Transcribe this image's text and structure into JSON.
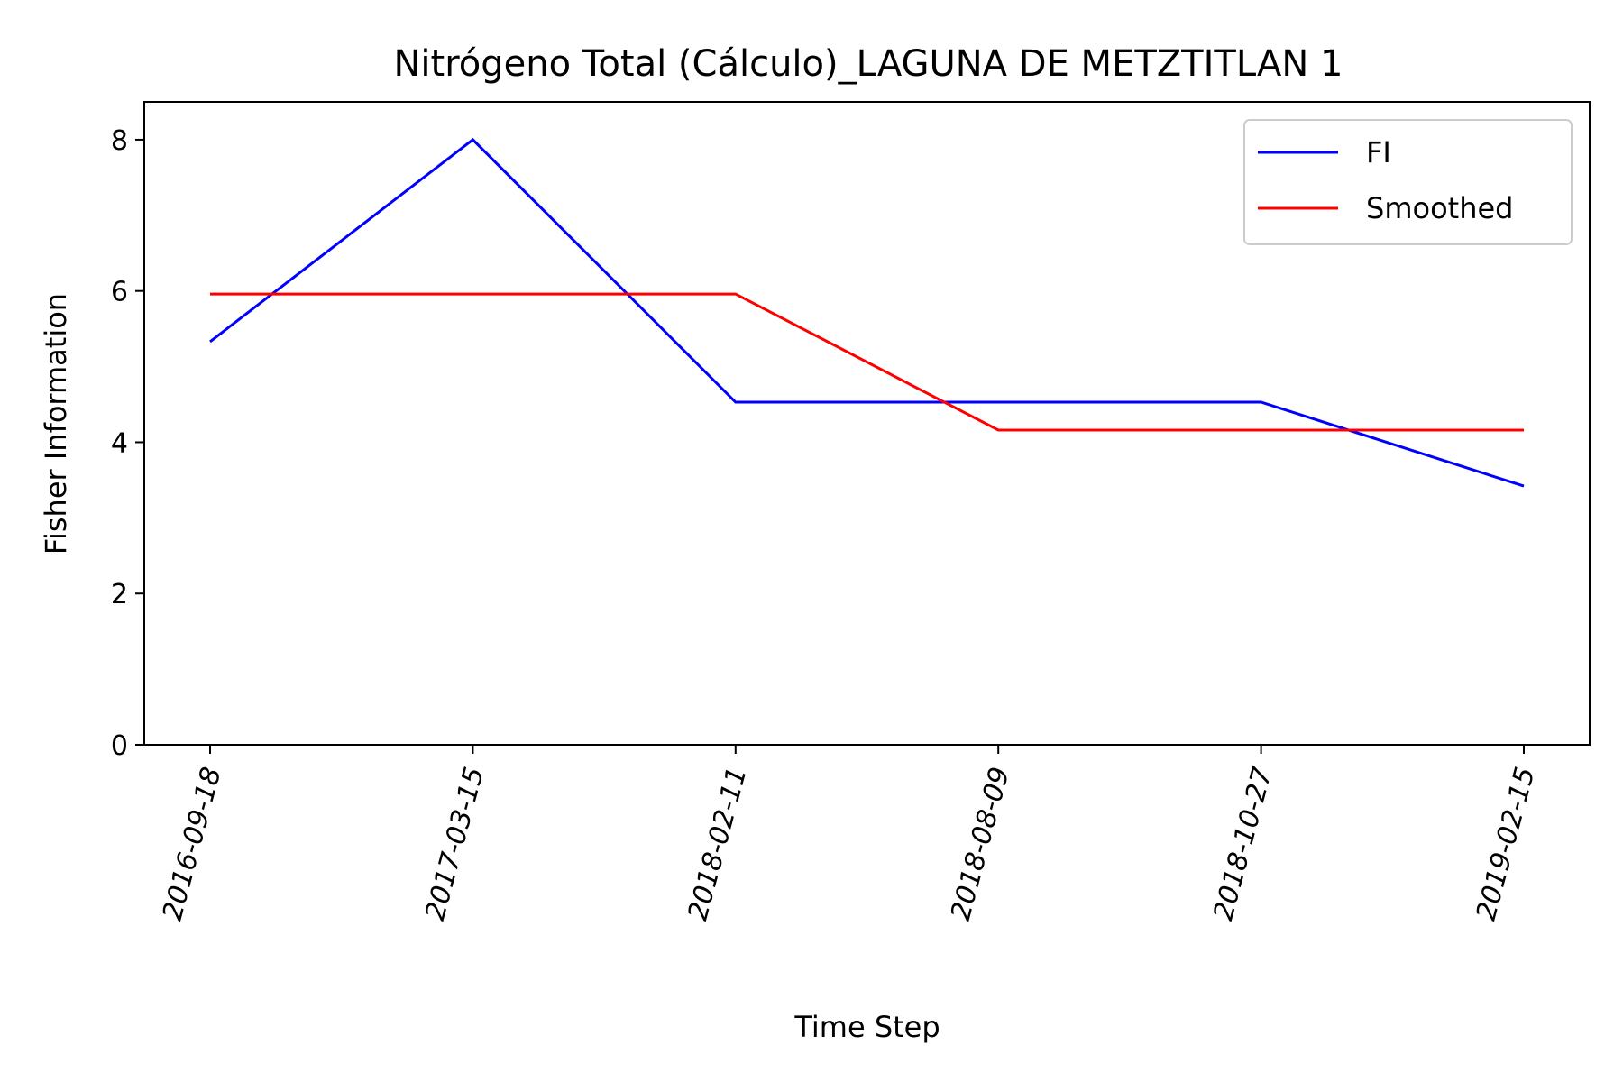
{
  "chart_data": {
    "type": "line",
    "title": "Nitrógeno Total (Cálculo)_LAGUNA DE METZTITLAN 1",
    "xlabel": "Time Step",
    "ylabel": "Fisher Information",
    "categories": [
      "2016-09-18",
      "2017-03-15",
      "2018-02-11",
      "2018-08-09",
      "2018-10-27",
      "2019-02-15"
    ],
    "ylim": [
      0,
      8.5
    ],
    "yticks": [
      0,
      2,
      4,
      6,
      8
    ],
    "grid": false,
    "legend_position": "top-right",
    "series": [
      {
        "name": "FI",
        "color": "#0000ff",
        "values": [
          5.33,
          8.0,
          4.53,
          4.53,
          4.53,
          3.42
        ]
      },
      {
        "name": "Smoothed",
        "color": "#ff0000",
        "values": [
          5.96,
          5.96,
          5.96,
          4.16,
          4.16,
          4.16
        ]
      }
    ]
  }
}
